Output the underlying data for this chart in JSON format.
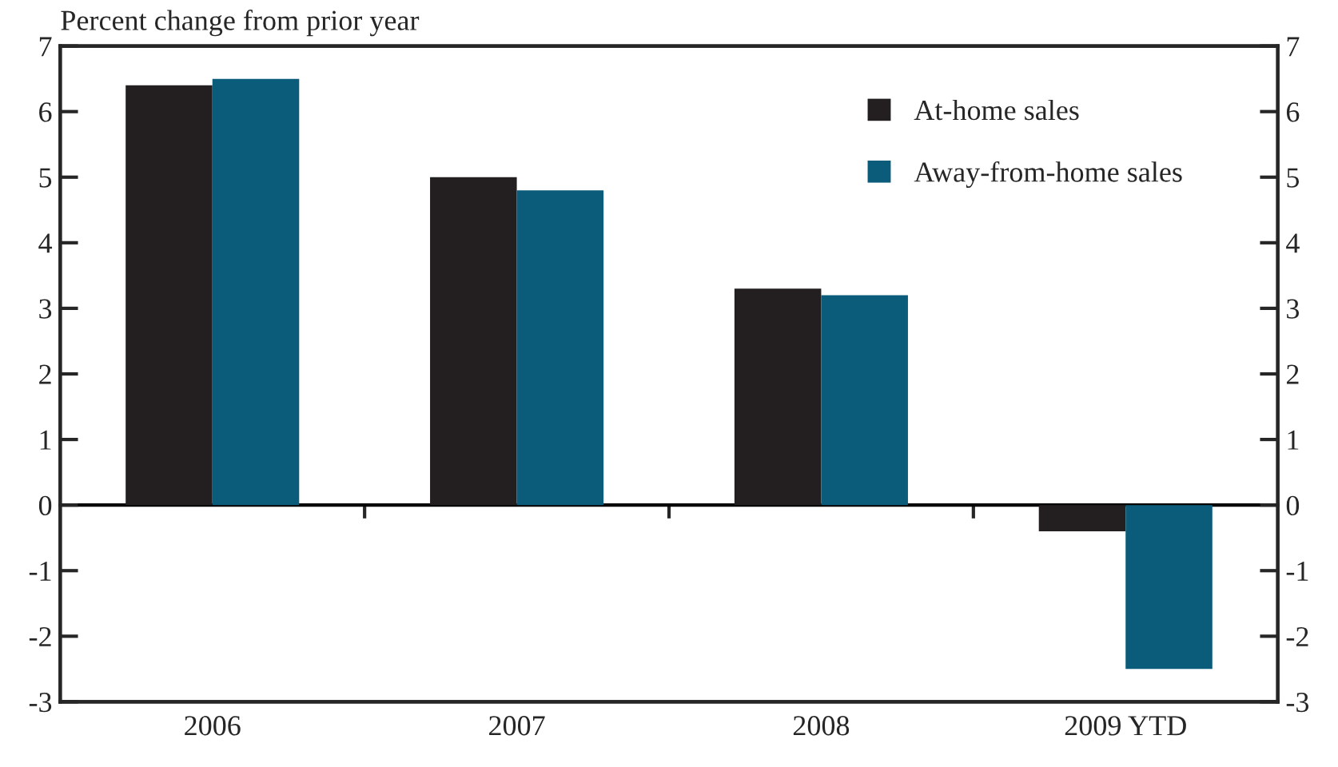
{
  "chart_data": {
    "type": "bar",
    "ylabel": "Percent change from prior year",
    "categories": [
      "2006",
      "2007",
      "2008",
      "2009 YTD"
    ],
    "series": [
      {
        "name": "At-home sales",
        "color": "#231f20",
        "values": [
          6.4,
          5.0,
          3.3,
          -0.4
        ]
      },
      {
        "name": "Away-from-home sales",
        "color": "#0b5c7a",
        "values": [
          6.5,
          4.8,
          3.2,
          -2.5
        ]
      }
    ],
    "ylim": [
      -3,
      7
    ],
    "yticks": [
      {
        "value": -3,
        "label": "-3"
      },
      {
        "value": -2,
        "label": "-2"
      },
      {
        "value": -1,
        "label": "-1"
      },
      0,
      1,
      2,
      3,
      4,
      5,
      6,
      7
    ],
    "y2lim": [
      -3,
      7
    ],
    "y2ticks": [
      {
        "value": -3,
        "label": "-3"
      },
      {
        "value": -2,
        "label": "-2"
      },
      {
        "value": -1,
        "label": "-1"
      },
      0,
      1,
      2,
      3,
      4,
      5,
      6,
      7
    ],
    "ref_lines": [
      {
        "axis": "y",
        "value": 0
      }
    ],
    "legend": "top right"
  }
}
